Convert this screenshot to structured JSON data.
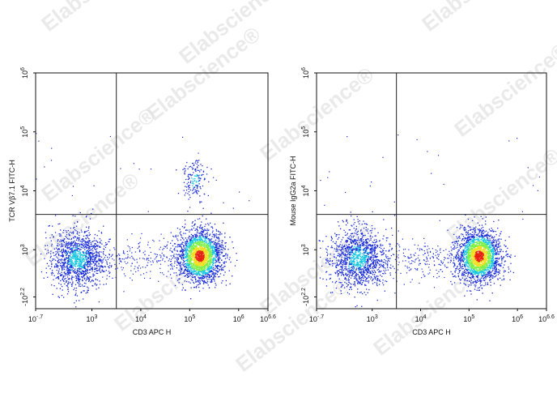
{
  "watermark": "Elabscience",
  "watermark_mark": "®",
  "colors": {
    "density_low": "#1a2cd8",
    "density_mid": "#18c8e0",
    "density_mid2": "#7ef04a",
    "density_high": "#f0e020",
    "density_peak": "#e82010",
    "gate": "#222222"
  },
  "chart_data": [
    {
      "type": "scatter",
      "subtype": "flow-cytometry-density",
      "xlabel": "CD3 APC H",
      "ylabel": "TCR Vβ7.1 FITC-H",
      "x_scale": "log",
      "y_scale": "log",
      "x_ticks": [
        "10^-.7",
        "10^3",
        "10^4",
        "10^5",
        "10^6",
        "10^6.6"
      ],
      "y_ticks": [
        "10^6",
        "10^5",
        "10^4",
        "10^3",
        "-10^2.2"
      ],
      "gate": {
        "x": "10^3.5",
        "y": "10^3.6"
      },
      "populations": [
        {
          "name_hidden": "cd3-negative",
          "center": [
            "10^2.7",
            "10^2.85"
          ],
          "density": "medium"
        },
        {
          "name_hidden": "cd3-positive",
          "center": [
            "10^5.2",
            "10^2.9"
          ],
          "density": "high"
        },
        {
          "name_hidden": "cd3-positive-vb7.1-positive",
          "center": [
            "10^5.1",
            "10^4.2"
          ],
          "density": "low"
        }
      ]
    },
    {
      "type": "scatter",
      "subtype": "flow-cytometry-density",
      "xlabel": "CD3 APC H",
      "ylabel": "Mouse IgG2a FITC-H",
      "x_scale": "log",
      "y_scale": "log",
      "x_ticks": [
        "10^-.7",
        "10^3",
        "10^4",
        "10^5",
        "10^6",
        "10^6.6"
      ],
      "y_ticks": [
        "10^6",
        "10^5",
        "10^4",
        "10^3",
        "-10^2.2"
      ],
      "gate": {
        "x": "10^3.5",
        "y": "10^3.6"
      },
      "populations": [
        {
          "name_hidden": "cd3-negative",
          "center": [
            "10^2.7",
            "10^2.85"
          ],
          "density": "medium"
        },
        {
          "name_hidden": "cd3-positive",
          "center": [
            "10^5.2",
            "10^2.9"
          ],
          "density": "high"
        }
      ]
    }
  ]
}
